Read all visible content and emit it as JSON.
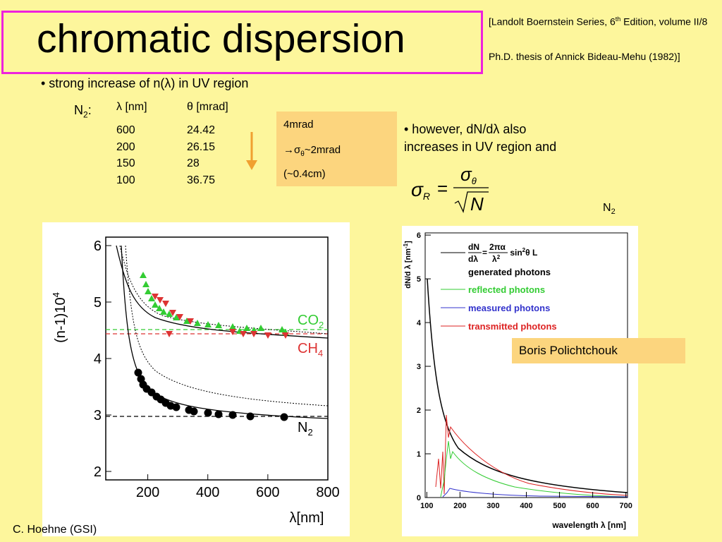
{
  "title": "chromatic dispersion",
  "reference": {
    "line1_pre": "[Landolt Boernstein Series, 6",
    "line1_sup": "th",
    "line1_post": " Edition, volume II/8",
    "line2": "Ph.D. thesis of Annick Bideau-Mehu (1982)]"
  },
  "bullet1": "• strong increase of n(λ) in UV region",
  "table": {
    "label": "N",
    "label_sub": "2",
    "label_suffix": ":",
    "headers": [
      "λ [nm]",
      "θ [mrad]"
    ],
    "rows": [
      [
        "600",
        "24.42"
      ],
      [
        "200",
        "26.15"
      ],
      [
        "150",
        "28"
      ],
      [
        "100",
        "36.75"
      ]
    ]
  },
  "note_box": {
    "line1": "4mrad",
    "line2_pre": "→σ",
    "line2_sub": "θ",
    "line2_post": "~2mrad",
    "line3": "(~0.4cm)"
  },
  "bullet2": [
    "• however, dN/dλ also",
    "increases in UV region and"
  ],
  "formula": {
    "lhs": "σ",
    "lhs_sub": "R",
    "eq": "=",
    "num": "σ",
    "num_sub": "θ",
    "den": "N"
  },
  "gas_label": {
    "text": "N",
    "sub": "2"
  },
  "plot_left": {
    "y_label": "(n-1)10",
    "y_label_sup": "4",
    "x_label": "λ[nm]",
    "xlim": [
      60,
      800
    ],
    "ylim": [
      1.85,
      6.15
    ],
    "xticks": [
      200,
      400,
      600,
      800
    ],
    "yticks": [
      2,
      3,
      4,
      5,
      6
    ],
    "labels": [
      {
        "text": "CO",
        "sub": "2"
      },
      {
        "text": "CH",
        "sub": "4"
      },
      {
        "text": "N",
        "sub": "2"
      }
    ]
  },
  "plot_right": {
    "y_label": "dN/d λ [nm",
    "y_label_sup": "-1",
    "y_label_post": "]",
    "x_label": "wavelength λ [nm]",
    "xlim": [
      95,
      705
    ],
    "ylim": [
      0,
      6.05
    ],
    "xticks": [
      100,
      200,
      300,
      400,
      500,
      600,
      700
    ],
    "yticks": [
      0,
      1,
      2,
      3,
      4,
      5,
      6
    ],
    "formula": {
      "lhs_num": "dN",
      "lhs_den": "dλ",
      "eq": "=",
      "rhs_num": "2πα",
      "rhs_den": "λ",
      "rhs_den_sup": "2",
      "rest": " sin",
      "rest_sup": "2",
      "rest_post": "θ L"
    },
    "legend": [
      "generated photons",
      "reflected photons",
      "measured photons",
      "transmitted photons"
    ]
  },
  "credit_box": "Boris Polichtchouk",
  "footer": "C. Hoehne (GSI)"
}
